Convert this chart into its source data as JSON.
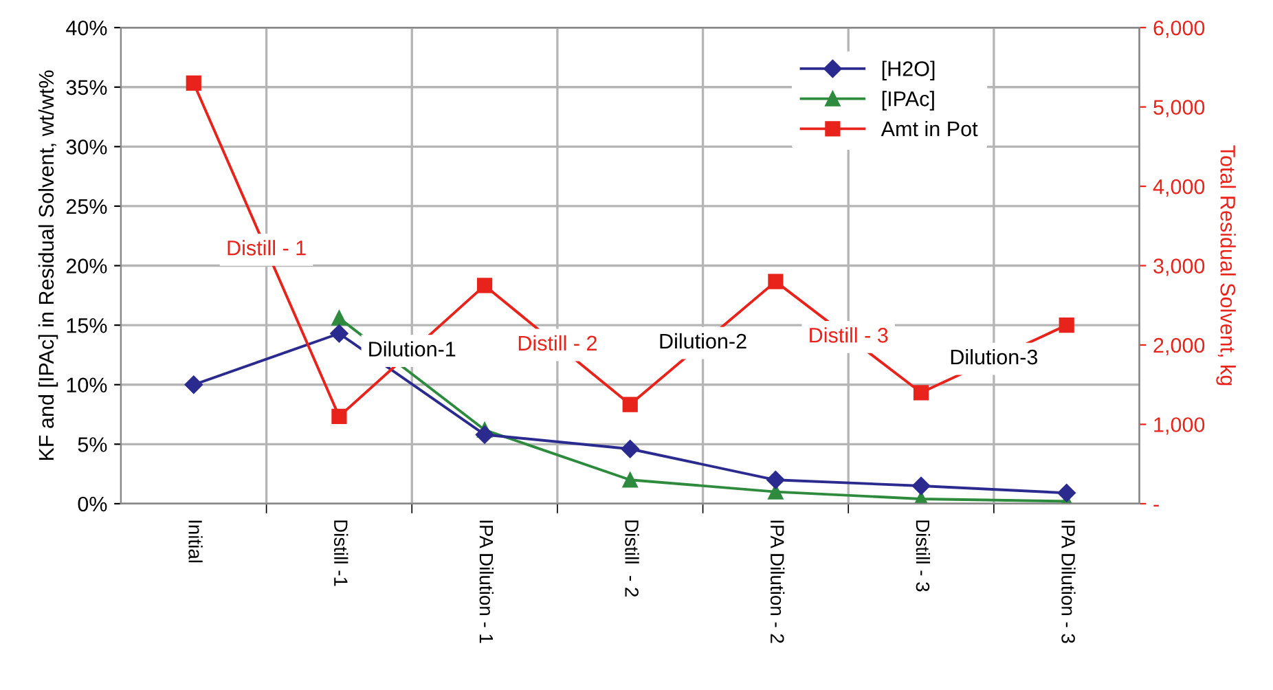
{
  "chart_data": {
    "type": "line",
    "categories": [
      "Initial",
      "Distill -1",
      "IPA Dilution - 1",
      "Distill  - 2",
      "IPA Dilution - 2",
      "Distill - 3",
      "IPA Dilution - 3"
    ],
    "series": [
      {
        "name": "[H2O]",
        "color": "#2b2b8f",
        "marker": "diamond",
        "values": [
          10.0,
          14.3,
          5.8,
          4.6,
          2.0,
          1.5,
          0.9
        ]
      },
      {
        "name": "[IPAc]",
        "color": "#2e8b3e",
        "marker": "triangle",
        "values": [
          null,
          15.6,
          6.2,
          2.0,
          1.0,
          0.4,
          0.2
        ]
      },
      {
        "name": "Amt in Pot",
        "color": "#e8231c",
        "marker": "square",
        "axis": "y2",
        "values": [
          5300,
          1100,
          2750,
          1250,
          2800,
          1400,
          2250
        ]
      }
    ],
    "ylabel": "KF and [IPAc] in Residual Solvent, wt/wt%",
    "y2label": "Total Residual Solvent, kg",
    "ylim": [
      0,
      40
    ],
    "yticks": [
      {
        "value": 0,
        "label": "0%"
      },
      {
        "value": 5,
        "label": "5%"
      },
      {
        "value": 10,
        "label": "10%"
      },
      {
        "value": 15,
        "label": "15%"
      },
      {
        "value": 20,
        "label": "20%"
      },
      {
        "value": 25,
        "label": "25%"
      },
      {
        "value": 30,
        "label": "30%"
      },
      {
        "value": 35,
        "label": "35%"
      },
      {
        "value": 40,
        "label": "40%"
      }
    ],
    "y2lim": [
      0,
      6000
    ],
    "y2ticks": [
      {
        "value": 0,
        "label": "-"
      },
      {
        "value": 1000,
        "label": "1,000"
      },
      {
        "value": 2000,
        "label": "2,000"
      },
      {
        "value": 3000,
        "label": "3,000"
      },
      {
        "value": 4000,
        "label": "4,000"
      },
      {
        "value": 5000,
        "label": "5,000"
      },
      {
        "value": 6000,
        "label": "6,000"
      }
    ],
    "annotations": [
      "Distill - 1",
      "Dilution-1",
      "Distill - 2",
      "Dilution-2",
      "Distill - 3",
      "Dilution-3"
    ],
    "grid": true,
    "legend": "top right",
    "line_style": "solid"
  }
}
